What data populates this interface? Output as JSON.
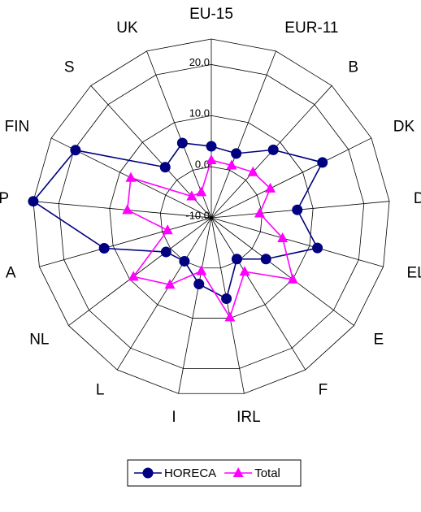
{
  "chart_data": {
    "type": "radar",
    "categories": [
      "EU-15",
      "EUR-11",
      "B",
      "DK",
      "D",
      "EL",
      "E",
      "F",
      "IRL",
      "I",
      "L",
      "NL",
      "A",
      "P",
      "FIN",
      "S",
      "UK"
    ],
    "series": [
      {
        "name": "HORECA",
        "color": "#000080",
        "marker": "circle",
        "values": [
          4.0,
          3.5,
          8.0,
          14.3,
          6.9,
          11.6,
          3.4,
          -0.5,
          6.1,
          3.2,
          0.0,
          1.1,
          11.8,
          25.0,
          19.7,
          3.4,
          5.7
        ]
      },
      {
        "name": "Total",
        "color": "#ff00ff",
        "marker": "triangle",
        "values": [
          1.3,
          1.0,
          2.1,
          2.9,
          -0.5,
          4.5,
          10.0,
          2.4,
          9.8,
          0.6,
          5.4,
          9.1,
          -1.1,
          6.5,
          7.6,
          -4.3,
          -4.6
        ]
      }
    ],
    "ylim": [
      -10,
      25
    ],
    "yticks": [
      {
        "value": -10,
        "label": "-10.0"
      },
      {
        "value": 0,
        "label": "0.0"
      },
      {
        "value": 10,
        "label": "10.0"
      },
      {
        "value": 20,
        "label": "20.0"
      }
    ],
    "grid": true,
    "legend": "bottom"
  }
}
